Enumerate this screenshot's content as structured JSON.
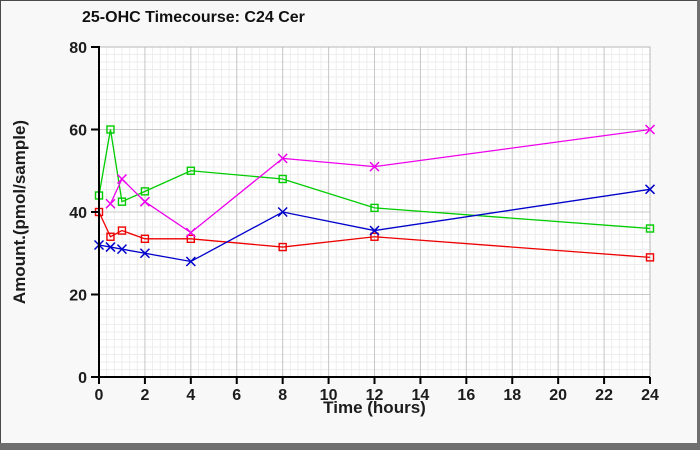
{
  "chart_data": {
    "type": "line",
    "title": "25-OHC Timecourse: C24 Cer",
    "xlabel": "Time (hours)",
    "ylabel": "Amount.(pmol/sample)",
    "xlim": [
      0,
      24
    ],
    "ylim": [
      0,
      80
    ],
    "x_ticks": [
      0,
      2,
      4,
      6,
      8,
      10,
      12,
      14,
      16,
      18,
      20,
      22,
      24
    ],
    "y_ticks": [
      0,
      20,
      40,
      60,
      80
    ],
    "grid": {
      "major": true,
      "minor": true
    },
    "legend": "none",
    "timepoints_hours": [
      0,
      0.5,
      1,
      2,
      4,
      8,
      12,
      24
    ],
    "series": [
      {
        "name": "red-squares",
        "color": "#ee0000",
        "marker": "square",
        "x": [
          0,
          0.5,
          1,
          2,
          4,
          8,
          12,
          24
        ],
        "values": [
          40,
          34,
          35.5,
          33.5,
          33.5,
          31.5,
          34,
          29
        ]
      },
      {
        "name": "green-squares",
        "color": "#00cc00",
        "marker": "square",
        "x": [
          0,
          0.5,
          1,
          2,
          4,
          8,
          12,
          24
        ],
        "values": [
          44,
          60,
          42.5,
          45,
          50,
          48,
          41,
          36
        ]
      },
      {
        "name": "blue-x",
        "color": "#0000cc",
        "marker": "x",
        "x": [
          0,
          0.5,
          1,
          2,
          4,
          8,
          12,
          24
        ],
        "values": [
          32,
          31.5,
          31,
          30,
          28,
          40,
          35.5,
          45.5
        ]
      },
      {
        "name": "magenta-x",
        "color": "#ee00ee",
        "marker": "x",
        "x": [
          0.5,
          1,
          2,
          4,
          8,
          12,
          24
        ],
        "values": [
          42,
          48,
          42.5,
          35,
          53,
          51,
          60
        ]
      }
    ],
    "style": {
      "window_bg": "#f8f8f8",
      "plot_bg": "#ffffff",
      "axis_color": "#000000",
      "grid_major_color": "#c8c8c8",
      "grid_minor_color": "#ededed",
      "plot_frame_color": "#b8b8b8",
      "text_color": "#1c1c1c",
      "window_border_color": "#6f6f6f"
    }
  }
}
